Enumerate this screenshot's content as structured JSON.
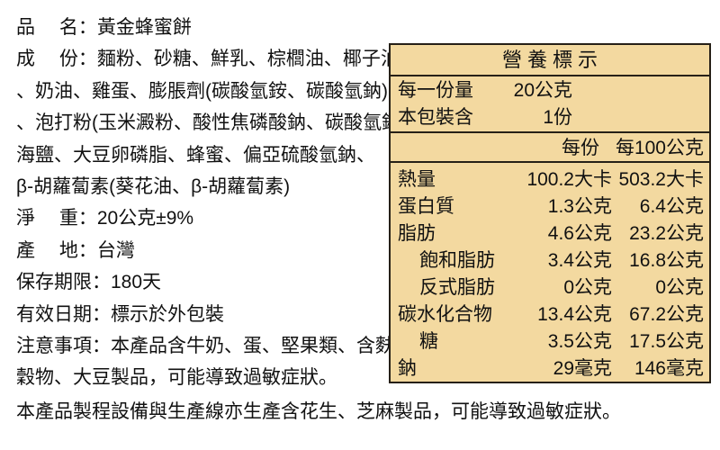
{
  "colors": {
    "table_bg": "#F3D9A0",
    "table_border": "#262017",
    "text": "#111111"
  },
  "product_info": {
    "lines": [
      "品　 名：黃金蜂蜜餅",
      "成　 份：麵粉、砂糖、鮮乳、棕櫚油、椰子油",
      "、奶油、雞蛋、膨脹劑(碳酸氫銨、碳酸氫鈉)、香料",
      "、泡打粉(玉米澱粉、酸性焦磷酸鈉、碳酸氫鈉)、",
      "海鹽、大豆卵磷脂、蜂蜜、偏亞硫酸氫鈉、",
      "β-胡蘿蔔素(葵花油、β-胡蘿蔔素)",
      "淨　 重：20公克±9%",
      "產　 地：台灣",
      "保存期限：180天",
      "有效日期：標示於外包裝",
      "注意事項：本產品含牛奶、蛋、堅果類、含麩質的",
      "穀物、大豆製品，可能導致過敏症狀。"
    ]
  },
  "footer_note": "本產品製程設備與生產線亦生產含花生、芝麻製品，可能導致過敏症狀。",
  "nutrition": {
    "title": "營養標示",
    "serving_size": {
      "label": "每一份量",
      "value": "20公克"
    },
    "servings_per_pack": {
      "label": "本包裝含",
      "value": "1份"
    },
    "columns": {
      "per_serving": "每份",
      "per_100g": "每100公克"
    },
    "rows": [
      {
        "label": "熱量",
        "indent": false,
        "per_serving": "100.2大卡",
        "per_100g": "503.2大卡"
      },
      {
        "label": "蛋白質",
        "indent": false,
        "per_serving": "1.3公克",
        "per_100g": "6.4公克"
      },
      {
        "label": "脂肪",
        "indent": false,
        "per_serving": "4.6公克",
        "per_100g": "23.2公克"
      },
      {
        "label": "飽和脂肪",
        "indent": true,
        "per_serving": "3.4公克",
        "per_100g": "16.8公克"
      },
      {
        "label": "反式脂肪",
        "indent": true,
        "per_serving": "0公克",
        "per_100g": "0公克"
      },
      {
        "label": "碳水化合物",
        "indent": false,
        "per_serving": "13.4公克",
        "per_100g": "67.2公克"
      },
      {
        "label": "糖",
        "indent": true,
        "per_serving": "3.5公克",
        "per_100g": "17.5公克"
      },
      {
        "label": "鈉",
        "indent": false,
        "per_serving": "29毫克",
        "per_100g": "146毫克"
      }
    ]
  }
}
